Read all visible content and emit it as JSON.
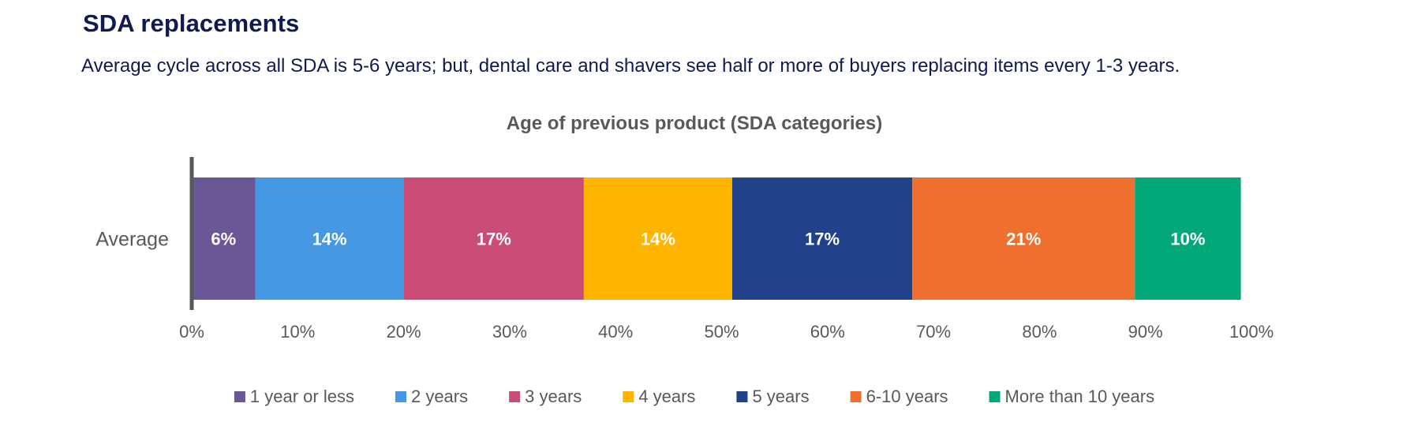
{
  "header": {
    "title": "SDA replacements",
    "subtitle": "Average cycle across all SDA is 5-6 years; but, dental care and shavers see half or more of buyers replacing items every 1-3 years."
  },
  "chart_data": {
    "type": "bar",
    "orientation": "horizontal",
    "stacked": true,
    "title": "Age of previous product (SDA categories)",
    "categories": [
      "Average"
    ],
    "series": [
      {
        "name": "1 year or less",
        "values": [
          6
        ],
        "label": "6%",
        "color": "#6a5896"
      },
      {
        "name": "2 years",
        "values": [
          14
        ],
        "label": "14%",
        "color": "#4698e2"
      },
      {
        "name": "3 years",
        "values": [
          17
        ],
        "label": "17%",
        "color": "#cc4c78"
      },
      {
        "name": "4 years",
        "values": [
          14
        ],
        "label": "14%",
        "color": "#ffb400"
      },
      {
        "name": "5 years",
        "values": [
          17
        ],
        "label": "17%",
        "color": "#21418a"
      },
      {
        "name": "6-10 years",
        "values": [
          21
        ],
        "label": "21%",
        "color": "#ef6f2f"
      },
      {
        "name": "More than 10 years",
        "values": [
          10
        ],
        "label": "10%",
        "color": "#02a878"
      }
    ],
    "xlim": [
      0,
      100
    ],
    "xticks": [
      0,
      10,
      20,
      30,
      40,
      50,
      60,
      70,
      80,
      90,
      100
    ],
    "xtick_labels": [
      "0%",
      "10%",
      "20%",
      "30%",
      "40%",
      "50%",
      "60%",
      "70%",
      "80%",
      "90%",
      "100%"
    ],
    "grid": false,
    "legend_position": "bottom"
  }
}
